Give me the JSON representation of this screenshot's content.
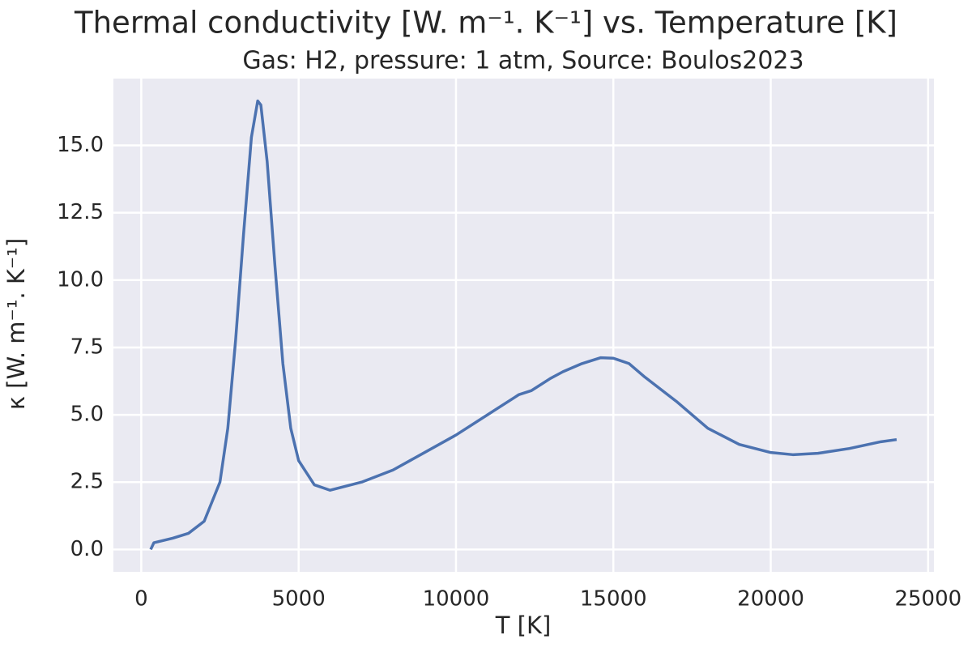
{
  "chart_data": {
    "type": "line",
    "title": "Thermal conductivity [W. m⁻¹. K⁻¹] vs. Temperature [K]",
    "subtitle": "Gas: H2, pressure: 1 atm, Source: Boulos2023",
    "x_label": "T [K]",
    "y_label": "κ [W. m⁻¹. K⁻¹]",
    "x": [
      300,
      400,
      1000,
      1500,
      2000,
      2500,
      2750,
      3000,
      3250,
      3500,
      3700,
      3800,
      4000,
      4250,
      4500,
      4750,
      5000,
      5500,
      6000,
      7000,
      8000,
      9000,
      10000,
      11000,
      12000,
      12400,
      13000,
      13400,
      14000,
      14600,
      15000,
      15500,
      16000,
      17000,
      18000,
      19000,
      20000,
      20700,
      21500,
      22500,
      23500,
      24000
    ],
    "values": [
      0.0,
      0.25,
      0.42,
      0.6,
      1.05,
      2.5,
      4.5,
      7.8,
      11.7,
      15.3,
      16.65,
      16.5,
      14.4,
      10.5,
      6.9,
      4.5,
      3.3,
      2.4,
      2.2,
      2.5,
      2.95,
      3.6,
      4.25,
      5.0,
      5.75,
      5.9,
      6.35,
      6.6,
      6.9,
      7.12,
      7.1,
      6.9,
      6.4,
      5.5,
      4.5,
      3.9,
      3.6,
      3.52,
      3.57,
      3.75,
      4.0,
      4.08
    ],
    "color": "#4c72b0",
    "xlim": [
      -885,
      25185
    ],
    "ylim": [
      -0.83,
      17.48
    ],
    "xticks": [
      0,
      5000,
      10000,
      15000,
      20000,
      25000
    ],
    "yticks": [
      {
        "value": 0,
        "label": "0.0"
      },
      2.5,
      {
        "value": 5,
        "label": "5.0"
      },
      7.5,
      {
        "value": 10,
        "label": "10.0"
      },
      12.5,
      {
        "value": 15,
        "label": "15.0"
      }
    ],
    "grid": true
  }
}
